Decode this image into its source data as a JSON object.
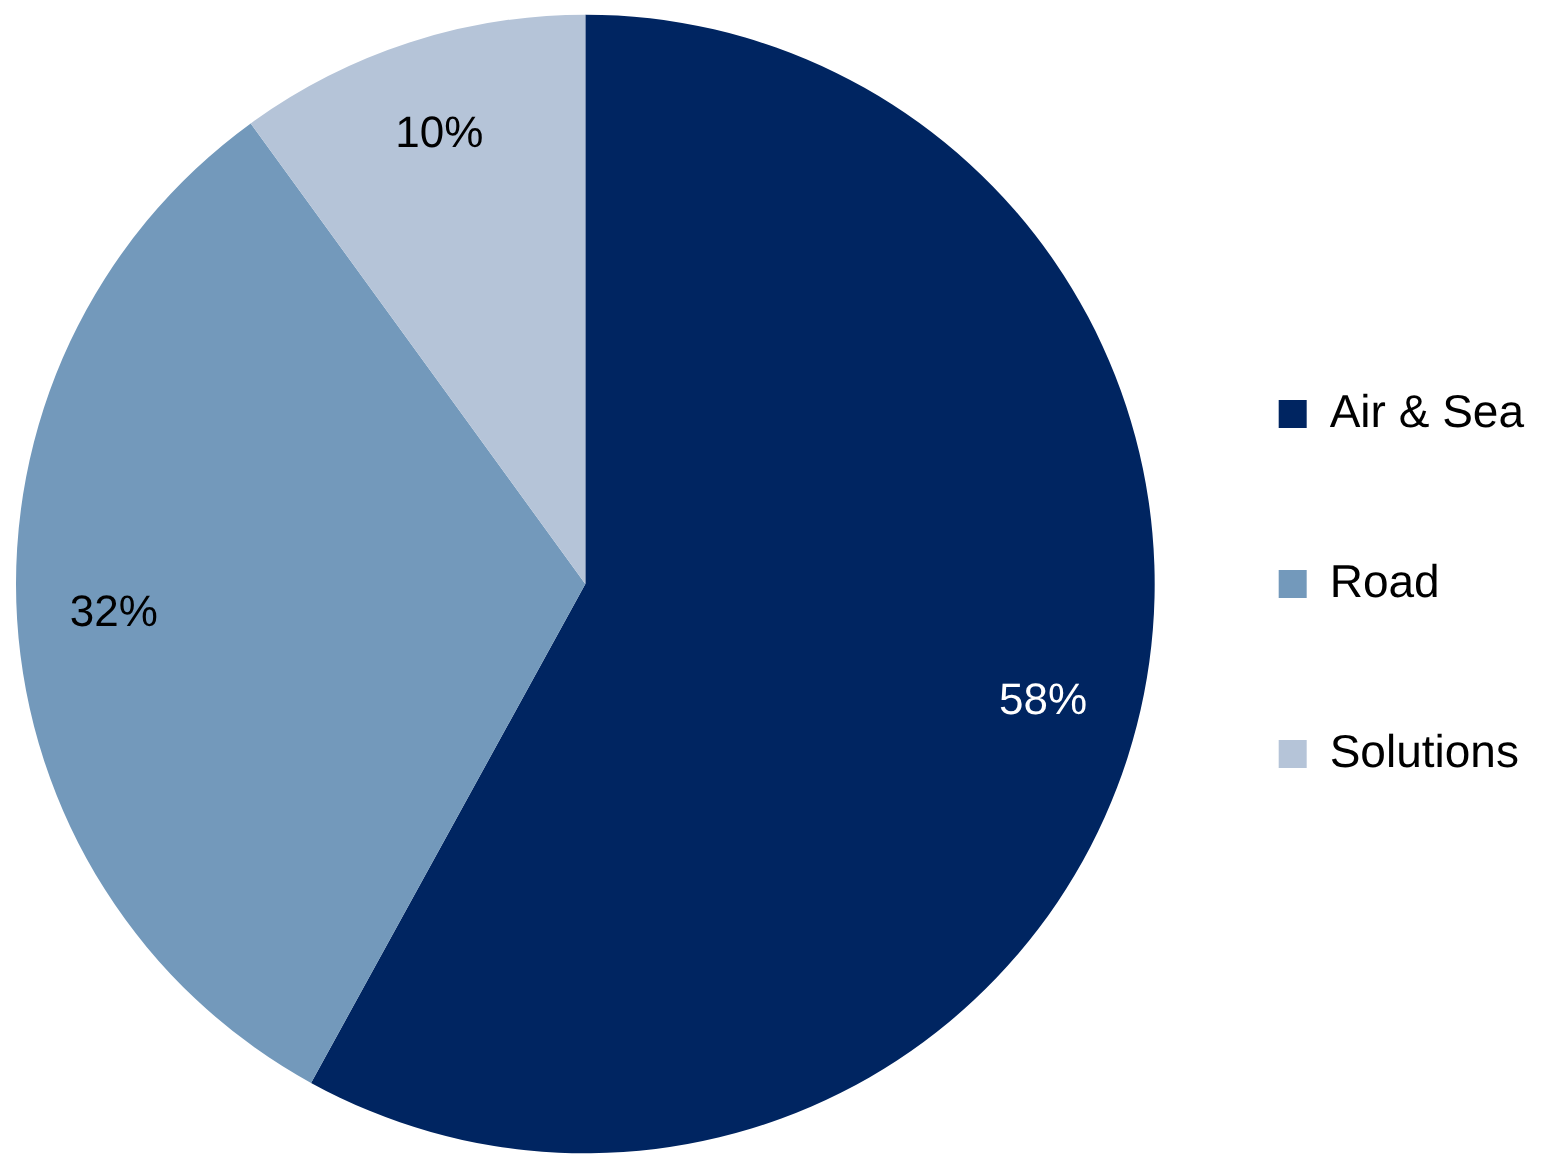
{
  "chart_data": {
    "type": "pie",
    "categories": [
      "Air & Sea",
      "Road",
      "Solutions"
    ],
    "values": [
      58,
      32,
      10
    ],
    "colors": [
      "#002561",
      "#7399bb",
      "#b5c4d8"
    ],
    "value_labels": [
      "58%",
      "32%",
      "10%"
    ],
    "legend": "right"
  }
}
